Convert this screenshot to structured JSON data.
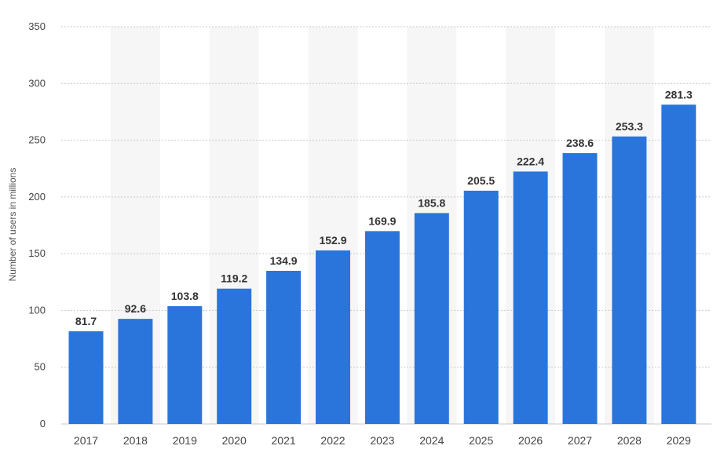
{
  "chart_data": {
    "type": "bar",
    "title": "",
    "xlabel": "",
    "ylabel": "Number of users in millions",
    "categories": [
      "2017",
      "2018",
      "2019",
      "2020",
      "2021",
      "2022",
      "2023",
      "2024",
      "2025",
      "2026",
      "2027",
      "2028",
      "2029"
    ],
    "values": [
      81.7,
      92.6,
      103.8,
      119.2,
      134.9,
      152.9,
      169.9,
      185.8,
      205.5,
      222.4,
      238.6,
      253.3,
      281.3
    ],
    "value_labels": [
      "81.7",
      "92.6",
      "103.8",
      "119.2",
      "134.9",
      "152.9",
      "169.9",
      "185.8",
      "205.5",
      "222.4",
      "238.6",
      "253.3",
      "281.3"
    ],
    "yticks": [
      "0",
      "50",
      "100",
      "150",
      "200",
      "250",
      "300",
      "350"
    ],
    "ylim": [
      0,
      350
    ],
    "grid": true,
    "legend": "none",
    "colors": {
      "bar": "#2a75db",
      "grid": "#c8c8c8",
      "band": "#f6f6f6"
    }
  }
}
